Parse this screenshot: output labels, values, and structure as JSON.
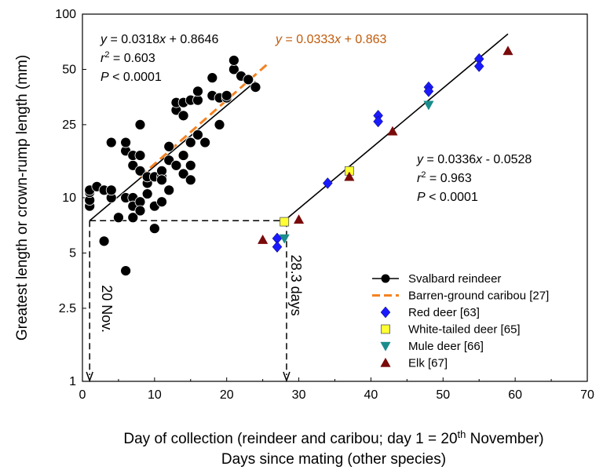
{
  "chart_data": {
    "type": "scatter",
    "title": "",
    "xlabel": "Day of collection (reindeer and caribou; day 1 = 20",
    "xlabel_sup": "th",
    "xlabel_suffix": " November)",
    "xlabel2": "Days since mating (other species)",
    "ylabel": "Greatest length or crown-rump length (mm)",
    "xlim": [
      0,
      70
    ],
    "ylim": [
      1,
      100
    ],
    "y_scale": "log",
    "x_ticks": [
      "0",
      "10",
      "20",
      "30",
      "40",
      "50",
      "60",
      "70"
    ],
    "y_ticks": [
      {
        "v": 1,
        "label": "1"
      },
      {
        "v": 2.5,
        "label": "2.5"
      },
      {
        "v": 5,
        "label": "5"
      },
      {
        "v": 10,
        "label": "10"
      },
      {
        "v": 25,
        "label": "25"
      },
      {
        "v": 50,
        "label": "50"
      },
      {
        "v": 100,
        "label": "100"
      }
    ],
    "legend_position": "bottom-right",
    "colors": {
      "reindeer": "#000000",
      "caribou": "#f58220",
      "red_deer": "#1a1aff",
      "white_tailed": "#ffff33",
      "mule_deer": "#1a8c8c",
      "elk": "#7a0a0a",
      "fit_text_orange": "#c05a0a"
    },
    "series": [
      {
        "name": "Svalbard reindeer",
        "marker": "circle",
        "color": "#000000",
        "points": [
          [
            1,
            9
          ],
          [
            1,
            9.7
          ],
          [
            1,
            10.7
          ],
          [
            1,
            11
          ],
          [
            2,
            11.5
          ],
          [
            3,
            11
          ],
          [
            3,
            5.8
          ],
          [
            4,
            10
          ],
          [
            4,
            11
          ],
          [
            4,
            20
          ],
          [
            5,
            7.8
          ],
          [
            6,
            4
          ],
          [
            6,
            18
          ],
          [
            6,
            20
          ],
          [
            6,
            10
          ],
          [
            7,
            15
          ],
          [
            7,
            17
          ],
          [
            7,
            10
          ],
          [
            7,
            7.8
          ],
          [
            7,
            9
          ],
          [
            8,
            14
          ],
          [
            8,
            17
          ],
          [
            8,
            9.5
          ],
          [
            8,
            8.5
          ],
          [
            8,
            25
          ],
          [
            9,
            12
          ],
          [
            9,
            10.5
          ],
          [
            9,
            13
          ],
          [
            10,
            13
          ],
          [
            10,
            9
          ],
          [
            10,
            6.8
          ],
          [
            11,
            13
          ],
          [
            11,
            14
          ],
          [
            11,
            9.5
          ],
          [
            11,
            12.5
          ],
          [
            12,
            11
          ],
          [
            12,
            16
          ],
          [
            12,
            19
          ],
          [
            13,
            15
          ],
          [
            13,
            30
          ],
          [
            13,
            33
          ],
          [
            14,
            13.5
          ],
          [
            14,
            17
          ],
          [
            14,
            28
          ],
          [
            14,
            33
          ],
          [
            15,
            12.5
          ],
          [
            15,
            15
          ],
          [
            15,
            20
          ],
          [
            15,
            34
          ],
          [
            16,
            22
          ],
          [
            16,
            34
          ],
          [
            16,
            38
          ],
          [
            17,
            20
          ],
          [
            18,
            36
          ],
          [
            18,
            45
          ],
          [
            19,
            25
          ],
          [
            19,
            35
          ],
          [
            20,
            35
          ],
          [
            20,
            36
          ],
          [
            21,
            50
          ],
          [
            21,
            56
          ],
          [
            22,
            46
          ],
          [
            23,
            44
          ],
          [
            24,
            40
          ]
        ]
      },
      {
        "name": "Red deer [63]",
        "marker": "diamond",
        "color": "#1a1aff",
        "points": [
          [
            27,
            6
          ],
          [
            27,
            5.4
          ],
          [
            34,
            12
          ],
          [
            41,
            28
          ],
          [
            41,
            26
          ],
          [
            48,
            40
          ],
          [
            48,
            38
          ],
          [
            55,
            57
          ],
          [
            55,
            52
          ]
        ]
      },
      {
        "name": "White-tailed deer [65]",
        "marker": "square",
        "color": "#ffff33",
        "points": [
          [
            28,
            7.4
          ],
          [
            37,
            14
          ]
        ]
      },
      {
        "name": "Mule deer [66]",
        "marker": "triangle-down",
        "color": "#1a8c8c",
        "points": [
          [
            28,
            6
          ],
          [
            48,
            32
          ]
        ]
      },
      {
        "name": "Elk [67]",
        "marker": "triangle-up",
        "color": "#7a0a0a",
        "points": [
          [
            25,
            5.9
          ],
          [
            30,
            7.6
          ],
          [
            37,
            13
          ],
          [
            43,
            23
          ],
          [
            59,
            63
          ]
        ]
      }
    ],
    "fit_lines": [
      {
        "series": "Svalbard reindeer",
        "equation": "y = 0.0318x + 0.8646",
        "color": "#000000",
        "style": "solid",
        "x_range": [
          1,
          24
        ],
        "y_range": [
          7.5,
          43
        ]
      },
      {
        "series": "Barren-ground caribou [27]",
        "equation": "y = 0.0333x + 0.863",
        "color": "#f58220",
        "style": "dashed",
        "x_range": [
          8,
          26
        ],
        "y_range": [
          13,
          55
        ]
      },
      {
        "series": "other species",
        "equation": "y = 0.0336x - 0.0528",
        "color": "#000000",
        "style": "solid",
        "x_range": [
          28,
          59
        ],
        "y_range": [
          7.5,
          78
        ]
      }
    ],
    "annotations": {
      "reindeer_fit": {
        "eq_pre": "y",
        "eq_mid": " = 0.0318",
        "eq_x": "x",
        "eq_post": " + 0.8646",
        "r2_pre": "r",
        "r2_sup": "2",
        "r2_post": " = 0.603",
        "p_pre": "P",
        "p_post": " < 0.0001"
      },
      "caribou_fit": {
        "eq_pre": "y",
        "eq_mid": " = 0.0333",
        "eq_x": "x",
        "eq_post": " + 0.863"
      },
      "other_fit": {
        "eq_pre": "y",
        "eq_mid": " = 0.0336",
        "eq_x": "x",
        "eq_post": " - 0.0528",
        "r2_pre": "r",
        "r2_sup": "2",
        "r2_post": " = 0.963",
        "p_pre": "P",
        "p_post": " < 0.0001"
      },
      "arrow_left_label": "20 Nov.",
      "arrow_right_label": "28.3 days",
      "ref_y": 7.5,
      "ref_x_left": 1,
      "ref_x_right": 28.3
    },
    "legend": [
      {
        "label": "Svalbard reindeer",
        "marker": "circle-line",
        "color": "#000000"
      },
      {
        "label": "Barren-ground caribou [27]",
        "marker": "dashed-line",
        "color": "#f58220"
      },
      {
        "label": "Red deer [63]",
        "marker": "diamond",
        "color": "#1a1aff"
      },
      {
        "label": "White-tailed deer [65]",
        "marker": "square",
        "color": "#ffff33"
      },
      {
        "label": "Mule deer [66]",
        "marker": "triangle-down",
        "color": "#1a8c8c"
      },
      {
        "label": "Elk [67]",
        "marker": "triangle-up",
        "color": "#7a0a0a"
      }
    ]
  }
}
